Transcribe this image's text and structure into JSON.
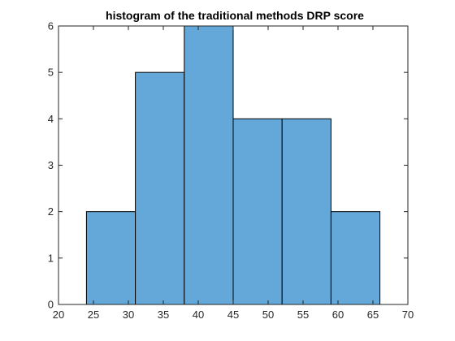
{
  "chart_data": {
    "type": "histogram",
    "title": "histogram of the traditional methods DRP score",
    "xlabel": "",
    "ylabel": "",
    "xlim": [
      20,
      70
    ],
    "ylim": [
      0,
      6
    ],
    "xticks": [
      20,
      25,
      30,
      35,
      40,
      45,
      50,
      55,
      60,
      65,
      70
    ],
    "yticks": [
      0,
      1,
      2,
      3,
      4,
      5,
      6
    ],
    "bin_edges": [
      24,
      31,
      38,
      45,
      52,
      59,
      66
    ],
    "counts": [
      2,
      5,
      6,
      4,
      4,
      2
    ],
    "bar_color": "#63a8d9",
    "edge_color": "#000000",
    "grid": false,
    "box": true
  }
}
